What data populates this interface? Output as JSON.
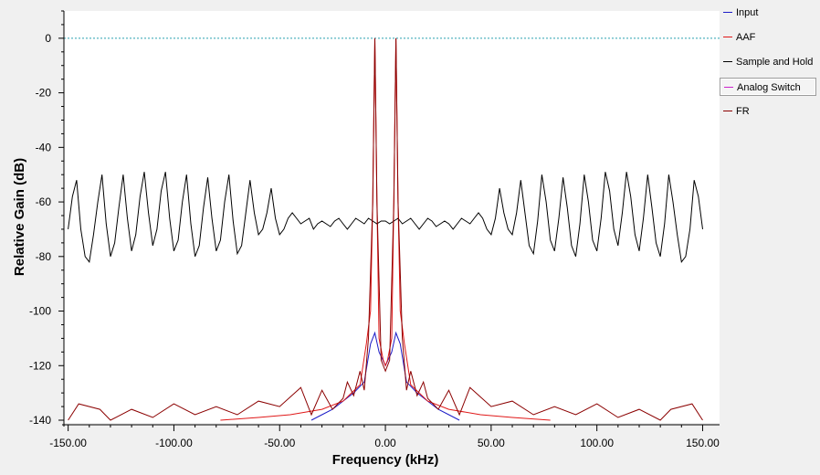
{
  "chart_data": {
    "type": "line",
    "xlabel": "Frequency (kHz)",
    "ylabel": "Relative Gain (dB)",
    "xlim": [
      -150,
      150
    ],
    "ylim": [
      -141,
      10
    ],
    "x_ticks": [
      -150,
      -100,
      -50,
      0,
      50,
      100,
      150
    ],
    "x_tick_labels": [
      "-150.00",
      "-100.00",
      "-50.00",
      "0.00",
      "50.00",
      "100.00",
      "150.00"
    ],
    "y_ticks": [
      0,
      -20,
      -40,
      -60,
      -80,
      -100,
      -120,
      -140
    ],
    "y_tick_labels": [
      "0",
      "-20",
      "-40",
      "-60",
      "-80",
      "-100",
      "-120",
      "-140"
    ],
    "reference_line": {
      "y": 0,
      "color": "#2aa0b0"
    },
    "grid": false,
    "legend_position": "right",
    "series": [
      {
        "name": "Input",
        "color": "#1c1cc8",
        "x": [
          -35,
          -30,
          -25,
          -20,
          -15,
          -10,
          -7,
          -5,
          -3,
          0,
          3,
          5,
          7,
          10,
          15,
          20,
          25,
          30,
          35
        ],
        "y": [
          -140,
          -138,
          -136,
          -133,
          -130,
          -126,
          -112,
          -108,
          -115,
          -120,
          -115,
          -108,
          -112,
          -126,
          -130,
          -133,
          -136,
          -138,
          -140
        ]
      },
      {
        "name": "AAF",
        "color": "#e01818",
        "x": [
          -78,
          -60,
          -45,
          -30,
          -20,
          -12,
          -9,
          -7,
          -6,
          -5,
          -4,
          -3,
          -1,
          0,
          1,
          3,
          4,
          5,
          6,
          7,
          9,
          12,
          20,
          30,
          45,
          60,
          78
        ],
        "y": [
          -140,
          -139,
          -138,
          -136,
          -133,
          -127,
          -112,
          -100,
          -60,
          0,
          -60,
          -110,
          -118,
          -120,
          -118,
          -110,
          -60,
          0,
          -60,
          -100,
          -112,
          -127,
          -133,
          -136,
          -138,
          -139,
          -140
        ]
      },
      {
        "name": "Sample and Hold",
        "color": "#000000",
        "x": [
          -150,
          -148,
          -146,
          -144,
          -142,
          -140,
          -138,
          -136,
          -134,
          -132,
          -130,
          -128,
          -126,
          -124,
          -122,
          -120,
          -118,
          -116,
          -114,
          -112,
          -110,
          -108,
          -106,
          -104,
          -102,
          -100,
          -98,
          -96,
          -94,
          -92,
          -90,
          -88,
          -86,
          -84,
          -82,
          -80,
          -78,
          -76,
          -74,
          -72,
          -70,
          -68,
          -66,
          -64,
          -62,
          -60,
          -58,
          -56,
          -54,
          -52,
          -50,
          -48,
          -46,
          -44,
          -42,
          -40,
          -38,
          -36,
          -34,
          -32,
          -30,
          -28,
          -26,
          -24,
          -22,
          -20,
          -18,
          -16,
          -14,
          -12,
          -10,
          -8,
          -6,
          -4,
          -2,
          0,
          2,
          4,
          6,
          8,
          10,
          12,
          14,
          16,
          18,
          20,
          22,
          24,
          26,
          28,
          30,
          32,
          34,
          36,
          38,
          40,
          42,
          44,
          46,
          48,
          50,
          52,
          54,
          56,
          58,
          60,
          62,
          64,
          66,
          68,
          70,
          72,
          74,
          76,
          78,
          80,
          82,
          84,
          86,
          88,
          90,
          92,
          94,
          96,
          98,
          100,
          102,
          104,
          106,
          108,
          110,
          112,
          114,
          116,
          118,
          120,
          122,
          124,
          126,
          128,
          130,
          132,
          134,
          136,
          138,
          140,
          142,
          144,
          146,
          148,
          150
        ],
        "y": [
          -70,
          -58,
          -52,
          -70,
          -80,
          -82,
          -72,
          -60,
          -50,
          -68,
          -80,
          -75,
          -62,
          -50,
          -66,
          -78,
          -72,
          -58,
          -49,
          -64,
          -76,
          -70,
          -56,
          -49,
          -66,
          -78,
          -74,
          -60,
          -50,
          -68,
          -80,
          -76,
          -62,
          -51,
          -66,
          -78,
          -74,
          -60,
          -50,
          -67,
          -79,
          -76,
          -64,
          -52,
          -64,
          -72,
          -70,
          -64,
          -55,
          -66,
          -72,
          -70,
          -66,
          -64,
          -66,
          -68,
          -67,
          -66,
          -70,
          -68,
          -67,
          -68,
          -69,
          -67,
          -66,
          -68,
          -70,
          -68,
          -66,
          -67,
          -68,
          -66,
          -67,
          -68,
          -67,
          -67,
          -68,
          -67,
          -66,
          -68,
          -67,
          -66,
          -68,
          -70,
          -68,
          -66,
          -67,
          -69,
          -68,
          -67,
          -68,
          -70,
          -68,
          -66,
          -67,
          -68,
          -66,
          -64,
          -66,
          -70,
          -72,
          -66,
          -55,
          -64,
          -70,
          -72,
          -64,
          -52,
          -64,
          -76,
          -79,
          -67,
          -50,
          -60,
          -74,
          -78,
          -66,
          -51,
          -62,
          -76,
          -80,
          -68,
          -50,
          -60,
          -74,
          -78,
          -66,
          -49,
          -56,
          -70,
          -76,
          -64,
          -49,
          -58,
          -72,
          -78,
          -66,
          -50,
          -62,
          -75,
          -80,
          -68,
          -50,
          -60,
          -72,
          -82,
          -80,
          -70,
          -52,
          -58,
          -70
        ]
      },
      {
        "name": "Analog Switch",
        "color": "#cc22cc",
        "x": [],
        "y": []
      },
      {
        "name": "FR",
        "color": "#8b0000",
        "x": [
          -150,
          -145,
          -135,
          -130,
          -120,
          -110,
          -100,
          -90,
          -80,
          -70,
          -60,
          -50,
          -40,
          -35,
          -30,
          -25,
          -20,
          -18,
          -15,
          -12,
          -10,
          -8,
          -6,
          -5,
          -4,
          -2,
          0,
          2,
          4,
          5,
          6,
          8,
          10,
          12,
          15,
          18,
          20,
          25,
          30,
          35,
          40,
          50,
          60,
          70,
          80,
          90,
          100,
          110,
          120,
          130,
          135,
          145,
          150
        ],
        "y": [
          -140,
          -134,
          -136,
          -140,
          -136,
          -139,
          -134,
          -138,
          -135,
          -138,
          -133,
          -135,
          -128,
          -138,
          -129,
          -136,
          -132,
          -126,
          -131,
          -122,
          -129,
          -110,
          -60,
          0,
          -60,
          -118,
          -122,
          -118,
          -60,
          0,
          -60,
          -110,
          -129,
          -122,
          -131,
          -126,
          -132,
          -136,
          -129,
          -138,
          -128,
          -135,
          -133,
          -138,
          -135,
          -138,
          -134,
          -139,
          -136,
          -140,
          -136,
          -134,
          -140
        ]
      }
    ]
  }
}
